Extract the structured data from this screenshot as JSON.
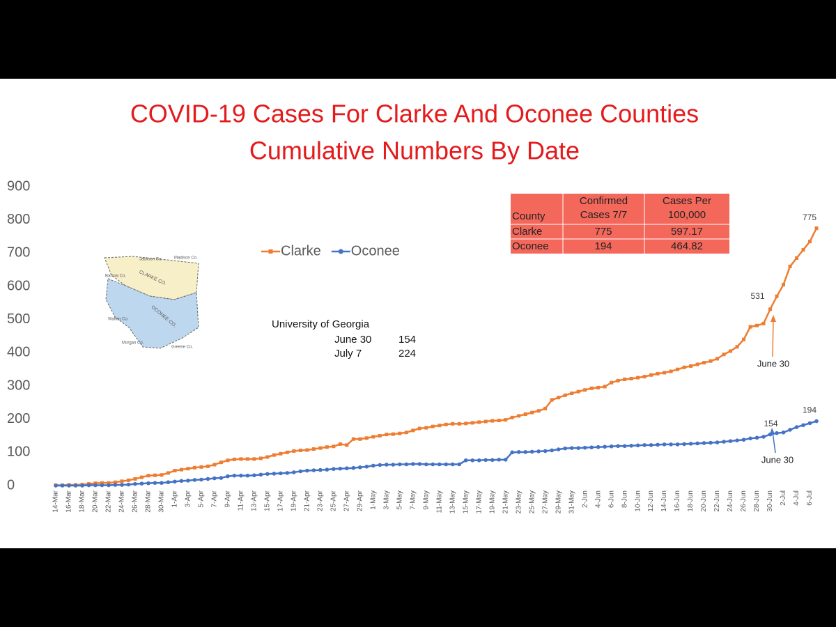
{
  "chart_data": {
    "type": "line",
    "title": "COVID-19 Cases For Clarke And Oconee Counties",
    "subtitle": "Cumulative Numbers By Date",
    "categories": [
      "14-Mar",
      null,
      "16-Mar",
      null,
      "18-Mar",
      null,
      "20-Mar",
      null,
      "22-Mar",
      null,
      "24-Mar",
      null,
      "26-Mar",
      null,
      "28-Mar",
      null,
      "30-Mar",
      null,
      "1-Apr",
      null,
      "3-Apr",
      null,
      "5-Apr",
      null,
      "7-Apr",
      null,
      "9-Apr",
      null,
      "11-Apr",
      null,
      "13-Apr",
      null,
      "15-Apr",
      null,
      "17-Apr",
      null,
      "19-Apr",
      null,
      "21-Apr",
      null,
      "23-Apr",
      null,
      "25-Apr",
      null,
      "27-Apr",
      null,
      "29-Apr",
      null,
      "1-May",
      null,
      "3-May",
      null,
      "5-May",
      null,
      "7-May",
      null,
      "9-May",
      null,
      "11-May",
      null,
      "13-May",
      null,
      "15-May",
      null,
      "17-May",
      null,
      "19-May",
      null,
      "21-May",
      null,
      "23-May",
      null,
      "25-May",
      null,
      "27-May",
      null,
      "29-May",
      null,
      "31-May",
      null,
      "2-Jun",
      null,
      "4-Jun",
      null,
      "6-Jun",
      null,
      "8-Jun",
      null,
      "10-Jun",
      null,
      "12-Jun",
      null,
      "14-Jun",
      null,
      "16-Jun",
      null,
      "18-Jun",
      null,
      "20-Jun",
      null,
      "22-Jun",
      null,
      "24-Jun",
      null,
      "26-Jun",
      null,
      "28-Jun",
      null,
      "30-Jun",
      null,
      "2-Jul",
      null,
      "4-Jul",
      null,
      "6-Jul",
      null
    ],
    "series": [
      {
        "name": "Clarke",
        "color": "#ed7d31",
        "marker": "square",
        "data_label_indices": [
          108,
          115
        ],
        "values": [
          1,
          1,
          2,
          2,
          3,
          5,
          7,
          8,
          8,
          10,
          13,
          16,
          20,
          25,
          30,
          31,
          32,
          38,
          45,
          48,
          51,
          54,
          56,
          58,
          63,
          70,
          76,
          79,
          80,
          80,
          80,
          82,
          86,
          92,
          96,
          100,
          104,
          106,
          107,
          110,
          113,
          116,
          118,
          125,
          122,
          140,
          140,
          143,
          147,
          150,
          154,
          155,
          157,
          160,
          166,
          172,
          174,
          178,
          181,
          184,
          186,
          186,
          187,
          189,
          191,
          193,
          195,
          196,
          198,
          205,
          210,
          215,
          220,
          225,
          232,
          258,
          265,
          272,
          278,
          283,
          288,
          293,
          295,
          298,
          310,
          316,
          320,
          322,
          325,
          328,
          333,
          337,
          340,
          344,
          350,
          356,
          360,
          365,
          370,
          375,
          382,
          395,
          405,
          418,
          440,
          478,
          482,
          488,
          531,
          570,
          605,
          660,
          685,
          710,
          735,
          775
        ]
      },
      {
        "name": "Oconee",
        "color": "#4472c4",
        "marker": "circle",
        "data_label_indices": [
          108,
          115
        ],
        "values": [
          0,
          0,
          0,
          0,
          0,
          1,
          1,
          1,
          1,
          2,
          2,
          3,
          5,
          6,
          7,
          8,
          8,
          10,
          12,
          14,
          15,
          17,
          18,
          20,
          22,
          23,
          28,
          30,
          30,
          30,
          31,
          33,
          35,
          36,
          37,
          38,
          40,
          43,
          45,
          46,
          47,
          48,
          50,
          51,
          52,
          53,
          55,
          57,
          60,
          62,
          63,
          63,
          64,
          64,
          65,
          65,
          64,
          64,
          64,
          64,
          64,
          64,
          76,
          76,
          76,
          77,
          77,
          78,
          78,
          100,
          101,
          101,
          102,
          103,
          104,
          106,
          109,
          112,
          113,
          113,
          114,
          115,
          116,
          117,
          118,
          119,
          119,
          120,
          121,
          122,
          122,
          123,
          124,
          124,
          124,
          125,
          126,
          127,
          128,
          129,
          130,
          132,
          134,
          136,
          138,
          142,
          144,
          147,
          154,
          158,
          160,
          168,
          176,
          182,
          188,
          194
        ]
      }
    ],
    "ylim": [
      0,
      900
    ],
    "yticks": [
      0,
      100,
      200,
      300,
      400,
      500,
      600,
      700,
      800,
      900
    ],
    "grid": false,
    "annotations": [
      "June 30",
      "June 30"
    ],
    "table": {
      "header": [
        "County",
        "Confirmed Cases 7/7",
        "Cases Per 100,000"
      ],
      "rows": [
        [
          "Clarke",
          "775",
          "597.17"
        ],
        [
          "Oconee",
          "194",
          "464.82"
        ]
      ]
    },
    "note": {
      "title": "University of Georgia",
      "rows": [
        [
          "June 30",
          "154"
        ],
        [
          "July 7",
          "224"
        ]
      ]
    },
    "map_labels": [
      "Jackson Co.",
      "Madison Co.",
      "Barrow Co.",
      "CLARKE CO.",
      "OCONEE CO.",
      "Walton Co.",
      "Morgan Co.",
      "Greene Co."
    ]
  }
}
